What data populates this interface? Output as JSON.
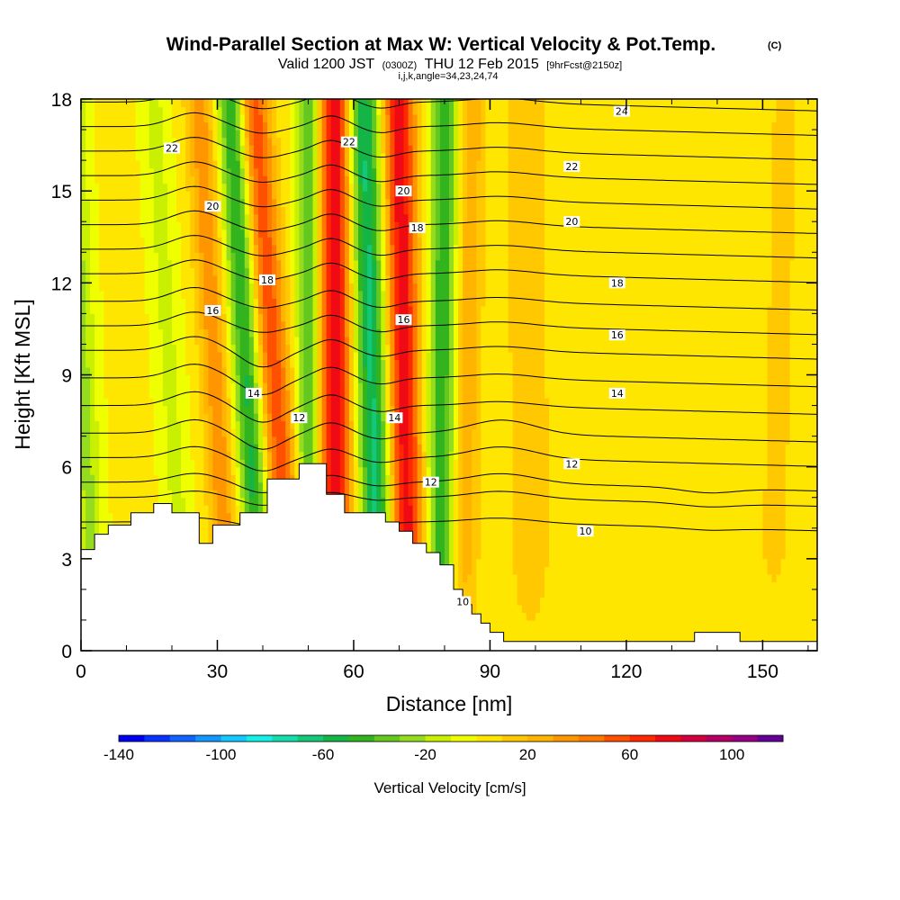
{
  "title": {
    "main": "Wind-Parallel Section at Max W: Vertical Velocity & Pot.Temp.",
    "copyright": "(C)",
    "valid_prefix": "Valid 1200 JST",
    "utc": "(0300Z)",
    "valid_date": "THU 12 Feb 2015",
    "forecast": "[9hrFcst@2150z]",
    "indices": "i,j,k,angle=34,23,24,74"
  },
  "chart_data": {
    "type": "heatmap",
    "xlabel": "Distance [nm]",
    "ylabel": "Height [Kft MSL]",
    "xlim": [
      0,
      162
    ],
    "ylim": [
      0,
      18
    ],
    "x_ticks": [
      0,
      30,
      60,
      90,
      120,
      150
    ],
    "x_tick_labels": [
      "0",
      "30",
      "60",
      "90",
      "120",
      "150"
    ],
    "y_ticks": [
      0,
      3,
      6,
      9,
      12,
      15,
      18
    ],
    "y_tick_labels": [
      "0",
      "3",
      "6",
      "9",
      "12",
      "15",
      "18"
    ],
    "grid": false,
    "colorbar": {
      "label": "Vertical Velocity [cm/s]",
      "levels": [
        -140,
        -130,
        -120,
        -110,
        -100,
        -90,
        -80,
        -70,
        -60,
        -50,
        -40,
        -30,
        -20,
        -10,
        0,
        10,
        20,
        30,
        40,
        50,
        60,
        70,
        80,
        90,
        100,
        110
      ],
      "colors": [
        "#0000f0",
        "#0a32ff",
        "#0f64ff",
        "#1496ff",
        "#14c8ff",
        "#14f0e6",
        "#14dcaa",
        "#14c878",
        "#14b446",
        "#32b41e",
        "#64c81e",
        "#96dc1e",
        "#c8f000",
        "#f0ff00",
        "#ffe600",
        "#ffc800",
        "#ffb400",
        "#ff9600",
        "#ff7800",
        "#ff5000",
        "#ff2800",
        "#f00a14",
        "#d2003c",
        "#b40064",
        "#960082",
        "#640096"
      ],
      "tick_values": [
        -140,
        -100,
        -60,
        -20,
        20,
        60,
        100
      ],
      "tick_labels": [
        "-140",
        "-100",
        "-60",
        "-20",
        "20",
        "60",
        "100"
      ]
    },
    "vertical_velocity_bands": [
      {
        "x_bottom": 3,
        "x_top": -2,
        "amplitude": -25,
        "half_width": 3
      },
      {
        "x_bottom": 23,
        "x_top": 16,
        "amplitude": -15,
        "half_width": 3
      },
      {
        "x_bottom": 33,
        "x_top": 26,
        "amplitude": 35,
        "half_width": 3
      },
      {
        "x_bottom": 40,
        "x_top": 33,
        "amplitude": -55,
        "half_width": 3
      },
      {
        "x_bottom": 47,
        "x_top": 38,
        "amplitude": 55,
        "half_width": 3.5
      },
      {
        "x_bottom": 50,
        "x_top": 50,
        "amplitude": -45,
        "half_width": 2.5
      },
      {
        "x_bottom": 56,
        "x_top": 56,
        "amplitude": 75,
        "half_width": 3.5
      },
      {
        "x_bottom": 66,
        "x_top": 62,
        "amplitude": -65,
        "half_width": 3.5
      },
      {
        "x_bottom": 72,
        "x_top": 70,
        "amplitude": 75,
        "half_width": 3.5
      },
      {
        "x_bottom": 79,
        "x_top": 80,
        "amplitude": -50,
        "half_width": 3
      },
      {
        "x_bottom": 84,
        "x_top": 86,
        "amplitude": 25,
        "half_width": 3
      },
      {
        "x_bottom": 99,
        "x_top": 98,
        "amplitude": 15,
        "half_width": 5
      },
      {
        "x_bottom": 124,
        "x_top": 128,
        "amplitude": 8,
        "half_width": 6
      },
      {
        "x_bottom": 152,
        "x_top": 155,
        "amplitude": 10,
        "half_width": 5
      }
    ],
    "terrain": {
      "x": [
        0,
        3,
        3,
        6,
        6,
        11,
        11,
        16,
        16,
        20,
        20,
        26,
        26,
        29,
        29,
        35,
        35,
        41,
        41,
        48,
        48,
        54,
        54,
        58,
        58,
        67,
        67,
        70,
        70,
        73,
        73,
        76,
        76,
        79,
        79,
        82,
        82,
        84,
        84,
        86,
        86,
        88,
        88,
        90,
        90,
        93,
        93,
        135,
        135,
        145,
        145,
        162
      ],
      "height": [
        3.3,
        3.3,
        3.8,
        3.8,
        4.1,
        4.1,
        4.5,
        4.5,
        4.8,
        4.8,
        4.5,
        4.5,
        3.5,
        3.5,
        4.1,
        4.1,
        4.5,
        4.5,
        5.6,
        5.6,
        6.1,
        6.1,
        5.1,
        5.1,
        4.5,
        4.5,
        4.2,
        4.2,
        3.9,
        3.9,
        3.5,
        3.5,
        3.2,
        3.2,
        2.8,
        2.8,
        2.0,
        2.0,
        1.5,
        1.5,
        1.2,
        1.2,
        0.9,
        0.9,
        0.6,
        0.6,
        0.3,
        0.3,
        0.6,
        0.6,
        0.3,
        0.3
      ]
    },
    "potential_temperature": {
      "contour_interval": 1,
      "base_levels": [
        4.2,
        5.0,
        5.5,
        6.3,
        7.1,
        8.0,
        8.9,
        9.8,
        10.6,
        11.4,
        12.3,
        13.1,
        13.9,
        14.7,
        15.5,
        16.3,
        17.1,
        17.9
      ],
      "levels": [
        10,
        11,
        12,
        13,
        14,
        15,
        16,
        17,
        18,
        19,
        20,
        21,
        22,
        23,
        24,
        25,
        26,
        27
      ],
      "labels": [
        {
          "text": "22",
          "x": 20,
          "height": 16.4
        },
        {
          "text": "20",
          "x": 29,
          "height": 14.5
        },
        {
          "text": "18",
          "x": 41,
          "height": 12.1
        },
        {
          "text": "16",
          "x": 29,
          "height": 11.1
        },
        {
          "text": "14",
          "x": 38,
          "height": 8.4
        },
        {
          "text": "12",
          "x": 48,
          "height": 7.6
        },
        {
          "text": "22",
          "x": 59,
          "height": 16.6
        },
        {
          "text": "20",
          "x": 71,
          "height": 15.0
        },
        {
          "text": "18",
          "x": 74,
          "height": 13.8
        },
        {
          "text": "16",
          "x": 71,
          "height": 10.8
        },
        {
          "text": "14",
          "x": 69,
          "height": 7.6
        },
        {
          "text": "12",
          "x": 77,
          "height": 5.5
        },
        {
          "text": "10",
          "x": 84,
          "height": 1.6
        },
        {
          "text": "24",
          "x": 119,
          "height": 17.6
        },
        {
          "text": "22",
          "x": 108,
          "height": 15.8
        },
        {
          "text": "20",
          "x": 108,
          "height": 14.0
        },
        {
          "text": "18",
          "x": 118,
          "height": 12.0
        },
        {
          "text": "16",
          "x": 118,
          "height": 10.3
        },
        {
          "text": "14",
          "x": 118,
          "height": 8.4
        },
        {
          "text": "12",
          "x": 108,
          "height": 6.1
        },
        {
          "text": "10",
          "x": 111,
          "height": 3.9
        }
      ]
    }
  }
}
